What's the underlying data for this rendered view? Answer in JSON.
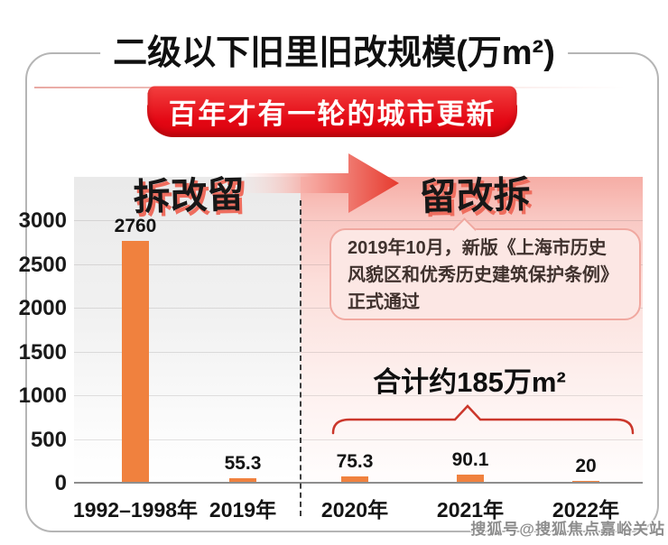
{
  "banner": {
    "text": "百年才有一轮的城市更新"
  },
  "flow": {
    "left_label": "拆改留",
    "right_label": "留改拆"
  },
  "annotation": {
    "lines": [
      "2019年10月，新版《上海市历史",
      "风貌区和优秀历史建筑保护条例》",
      "正式通过"
    ]
  },
  "summary": {
    "text": "合计约185万m²"
  },
  "watermark": {
    "text": "搜狐号@搜狐焦点嘉峪关站"
  },
  "palette": {
    "bar_orange": "#f0813e",
    "banner_red_top": "#f2403f",
    "banner_red_bottom": "#d4050f",
    "arrow_red": "#e63a2e",
    "annotation_bg": "#fce7e4",
    "annotation_border": "#f0a8a0",
    "brace_red": "#cb372b",
    "era_shadow_red": "#ee6d5e"
  },
  "chart_data": {
    "type": "bar",
    "title": "二级以下旧里旧改规模(万m²)",
    "subtitle_banner": "百年才有一轮的城市更新",
    "categories": [
      "1992–1998年",
      "2019年",
      "2020年",
      "2021年",
      "2022年"
    ],
    "values": [
      2760,
      55.3,
      75.3,
      90.1,
      20
    ],
    "labels": [
      "2760",
      "55.3",
      "75.3",
      "90.1",
      "20"
    ],
    "ylim": [
      0,
      3000
    ],
    "yticks": [
      0,
      500,
      1000,
      1500,
      2000,
      2500,
      3000
    ],
    "bar_color": "#f0813e",
    "grid": true,
    "legend": false,
    "phase_divider_after": "2019年",
    "phases": [
      {
        "label": "拆改留",
        "categories": [
          "1992–1998年",
          "2019年"
        ]
      },
      {
        "label": "留改拆",
        "categories": [
          "2020年",
          "2021年",
          "2022年"
        ]
      }
    ],
    "annotations": [
      "2019年10月，新版《上海市历史风貌区和优秀历史建筑保护条例》正式通过",
      "合计约185万m²"
    ]
  }
}
